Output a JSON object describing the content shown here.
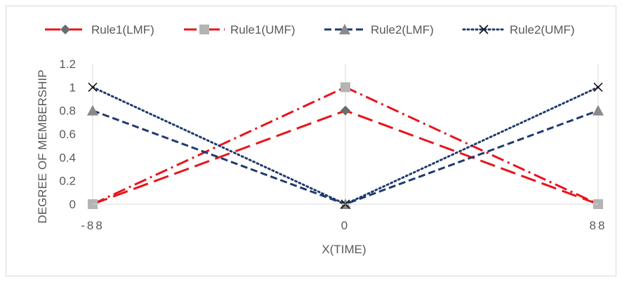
{
  "chart_data": {
    "type": "line",
    "title": "",
    "xlabel": "X(TIME)",
    "ylabel": "DEGREE OF MEMBERSHIP",
    "x": [
      -88,
      0,
      88
    ],
    "x_tick_labels": [
      "-88",
      "0",
      "88"
    ],
    "ylim": [
      0,
      1.2
    ],
    "y_tick_labels": [
      "0",
      "0.2",
      "0.4",
      "0.6",
      "0.8",
      "1",
      "1.2"
    ],
    "grid": "vertical",
    "legend_position": "top",
    "series": [
      {
        "name": "Rule1(LMF)",
        "values": [
          0,
          0.8,
          0
        ],
        "color": "#e8141c",
        "dash": "long-dash",
        "marker": "diamond",
        "marker_color": "#6b6b6b"
      },
      {
        "name": "Rule1(UMF)",
        "values": [
          0,
          1,
          0
        ],
        "color": "#e8141c",
        "dash": "dash-dot",
        "marker": "square",
        "marker_color": "#b4b4b4"
      },
      {
        "name": "Rule2(LMF)",
        "values": [
          0.8,
          0,
          0.8
        ],
        "color": "#1f3a6e",
        "dash": "dash",
        "marker": "triangle",
        "marker_color": "#8a8a8a"
      },
      {
        "name": "Rule2(UMF)",
        "values": [
          1,
          0,
          1
        ],
        "color": "#1f3a6e",
        "dash": "dotted",
        "marker": "x",
        "marker_color": "#111111"
      }
    ]
  }
}
